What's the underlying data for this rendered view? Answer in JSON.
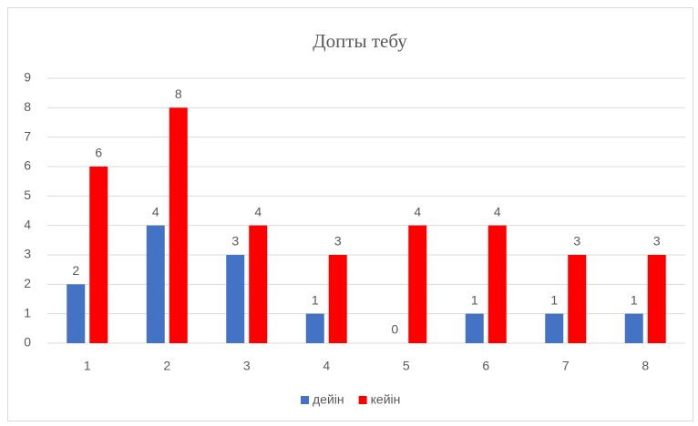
{
  "chart_data": {
    "type": "bar",
    "title": "Допты тебу",
    "categories": [
      "1",
      "2",
      "3",
      "4",
      "5",
      "6",
      "7",
      "8"
    ],
    "series": [
      {
        "name": "дейін",
        "color": "#4472c4",
        "values": [
          2,
          4,
          3,
          1,
          0,
          1,
          1,
          1
        ]
      },
      {
        "name": "кейін",
        "color": "#ff0000",
        "values": [
          6,
          8,
          4,
          3,
          4,
          4,
          3,
          3
        ]
      }
    ],
    "ylim": [
      0,
      9
    ],
    "yticks": [
      0,
      1,
      2,
      3,
      4,
      5,
      6,
      7,
      8,
      9
    ],
    "grid": true,
    "legend": "bottom"
  }
}
